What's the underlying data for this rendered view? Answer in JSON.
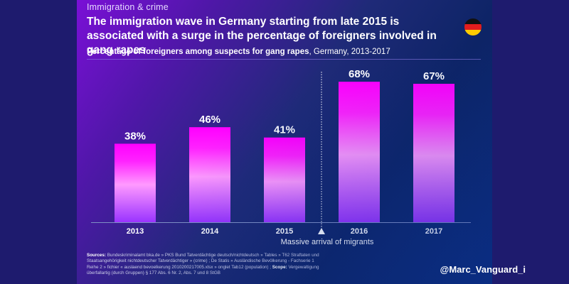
{
  "header": {
    "kicker": "Immigration & crime",
    "title": "The immigration wave in Germany starting from late 2015 is associated with a surge in the percentage of foreigners involved in gang rapes",
    "flag_icon": "germany-flag-icon",
    "subtitle_bold": "Percentage of foreigners among suspects for gang rapes",
    "subtitle_rest": ", Germany, 2013-2017"
  },
  "annotation": {
    "label": "Massive arrival of migrants",
    "position_between": [
      "2015",
      "2016"
    ]
  },
  "footer": {
    "sources_label": "Sources:",
    "sources_text": " Bundeskriminalamt bka.de » PKS Bund Tatverdächtige deutsch/nichtdeutsch » Tables » T62 Straftaten und Staatsangehörigkeit nichtdeutscher Tatverdächtiger » (crime) ; De Statis » Ausländische Bevölkerung - Fachserie 1 Reihe 2 » fichier « auslaend bevoelkerung 2010200217005.xlsx » onglet Tab12 (population) ; ",
    "scope_label": "Scope:",
    "scope_text": " Vergewaltigung überfallartig (durch Gruppen) § 177 Abs. 6 Nr. 2, Abs. 7 und 8 StGB",
    "handle": "@Marc_Vanguard_i"
  },
  "colors": {
    "bar_top": "#ff00ff",
    "bar_mid": "#ff99ff",
    "bar_bottom": "#9933ff",
    "text": "#ffffff",
    "axis": "#7f8fc4"
  },
  "chart_data": {
    "type": "bar",
    "title": "Percentage of foreigners among suspects for gang rapes, Germany, 2013-2017",
    "categories": [
      "2013",
      "2014",
      "2015",
      "2016",
      "2017"
    ],
    "values": [
      38,
      46,
      41,
      68,
      67
    ],
    "value_labels": [
      "38%",
      "46%",
      "41%",
      "68%",
      "67%"
    ],
    "unit": "%",
    "xlabel": "",
    "ylabel": "",
    "ylim": [
      0,
      100
    ],
    "grid": false,
    "legend": "none",
    "annotations": [
      {
        "type": "vertical-dotted-line",
        "between": [
          "2015",
          "2016"
        ],
        "text": "Massive arrival of migrants"
      }
    ]
  }
}
